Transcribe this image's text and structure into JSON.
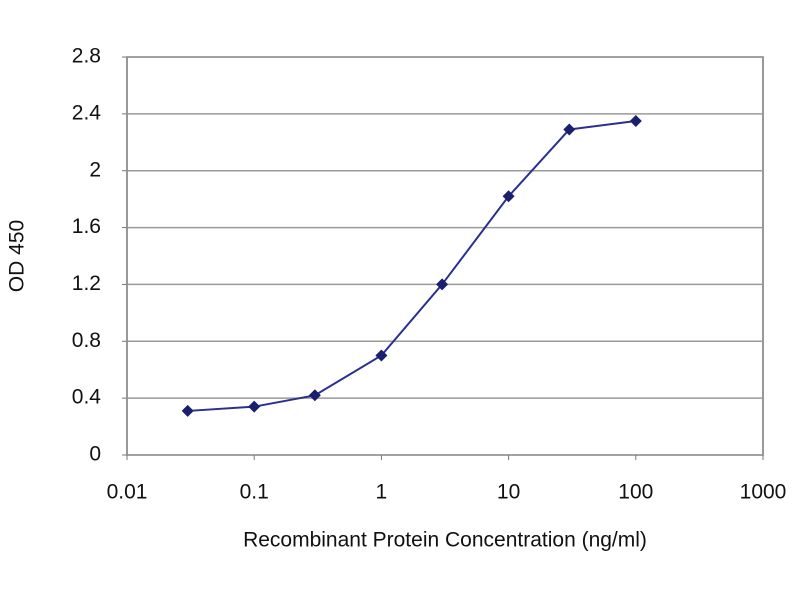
{
  "chart_data": {
    "type": "line",
    "x_label": "Recombinant Protein Concentration (ng/ml)",
    "y_label": "OD 450",
    "x": [
      0.03,
      0.1,
      0.3,
      1,
      3,
      10,
      30,
      100
    ],
    "series": [
      {
        "name": "OD 450",
        "color": "#2b2f8f",
        "values": [
          0.31,
          0.34,
          0.42,
          0.7,
          1.2,
          1.82,
          2.29,
          2.35
        ]
      }
    ],
    "xscale": "log",
    "xlim": [
      0.01,
      1000
    ],
    "xticks": [
      0.01,
      0.1,
      1,
      10,
      100,
      1000
    ],
    "ylim": [
      0,
      2.8
    ],
    "yticks": [
      0,
      0.4,
      0.8,
      1.2,
      1.6,
      2,
      2.4,
      2.8
    ],
    "grid": true
  }
}
